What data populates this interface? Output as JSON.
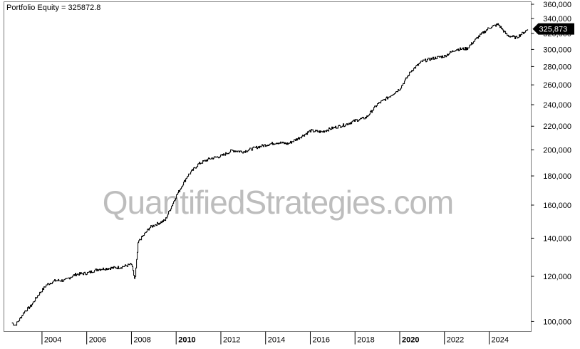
{
  "chart_data": {
    "type": "line",
    "title": "Portfolio Equity = 325872.8",
    "xlabel": "",
    "ylabel": "",
    "y_scale": "log",
    "ylim": [
      97000,
      360000
    ],
    "xlim": [
      2002.6,
      2025.8
    ],
    "y_ticks": [
      100000,
      120000,
      140000,
      160000,
      180000,
      200000,
      220000,
      240000,
      260000,
      280000,
      300000,
      320000,
      340000,
      360000
    ],
    "y_tick_labels": [
      "100,000",
      "120,000",
      "140,000",
      "160,000",
      "180,000",
      "200,000",
      "220,000",
      "240,000",
      "260,000",
      "280,000",
      "300,000",
      "320,000",
      "340,000",
      "360,000"
    ],
    "x_ticks": [
      2004,
      2006,
      2008,
      2010,
      2012,
      2014,
      2016,
      2018,
      2020,
      2022,
      2024
    ],
    "x_tick_labels": [
      "2004",
      "2006",
      "2008",
      "2010",
      "2012",
      "2014",
      "2016",
      "2018",
      "2020",
      "2022",
      "2024"
    ],
    "x_tick_bold": [
      "2010",
      "2020"
    ],
    "last_value_label": "325,873",
    "grid": false,
    "watermark": "QuantifiedStrategies.com",
    "series": [
      {
        "x": [
          2002.65,
          2002.8,
          2003.0,
          2003.2,
          2003.5,
          2003.8,
          2004.2,
          2004.6,
          2005.0,
          2005.5,
          2006.0,
          2006.5,
          2007.0,
          2007.5,
          2008.0,
          2008.15,
          2008.3,
          2008.5,
          2008.8,
          2009.0,
          2009.5,
          2010.0,
          2010.5,
          2011.0,
          2011.5,
          2012.0,
          2012.5,
          2013.0,
          2013.5,
          2014.0,
          2014.5,
          2015.0,
          2015.5,
          2016.0,
          2016.5,
          2017.0,
          2017.5,
          2018.0,
          2018.5,
          2019.0,
          2019.5,
          2020.0,
          2020.5,
          2021.0,
          2021.5,
          2022.0,
          2022.5,
          2023.0,
          2023.5,
          2024.0,
          2024.4,
          2024.8,
          2025.2,
          2025.5,
          2025.75
        ],
        "y": [
          99500,
          98500,
          101000,
          104000,
          106500,
          111000,
          116000,
          118000,
          118000,
          121000,
          121500,
          123500,
          124000,
          124500,
          126000,
          118000,
          138000,
          141000,
          146000,
          147500,
          150500,
          166000,
          180000,
          189000,
          193000,
          195000,
          199500,
          198500,
          201500,
          204000,
          206000,
          205000,
          210000,
          216000,
          215000,
          218500,
          221000,
          225000,
          228000,
          240500,
          247500,
          256000,
          275000,
          286000,
          289500,
          292000,
          300000,
          301000,
          315500,
          327500,
          332000,
          317500,
          314500,
          320500,
          325873
        ]
      }
    ]
  }
}
